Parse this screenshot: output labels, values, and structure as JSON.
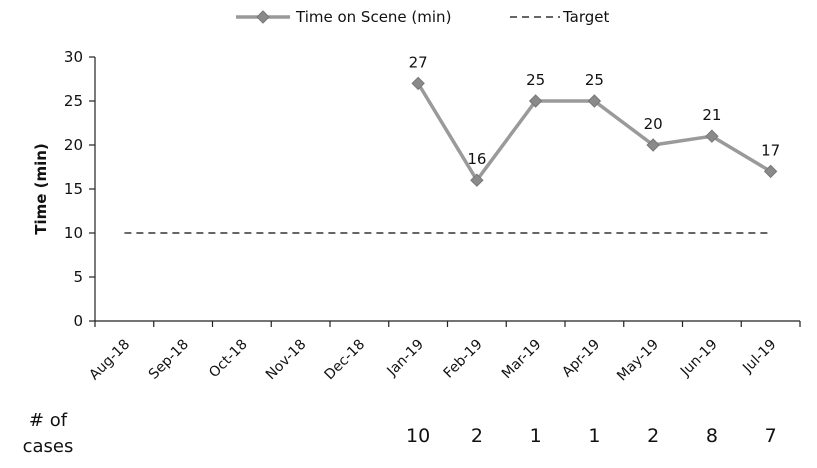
{
  "chart_data": {
    "type": "line",
    "categories": [
      "Aug-18",
      "Sep-18",
      "Oct-18",
      "Nov-18",
      "Dec-18",
      "Jan-19",
      "Feb-19",
      "Mar-19",
      "Apr-19",
      "May-19",
      "Jun-19",
      "Jul-19"
    ],
    "series": [
      {
        "name": "Time on Scene (min)",
        "values": [
          null,
          null,
          null,
          null,
          null,
          27,
          16,
          25,
          25,
          20,
          21,
          17
        ],
        "color": "#9a9a9a",
        "marker": "diamond"
      },
      {
        "name": "Target",
        "values": [
          10,
          10,
          10,
          10,
          10,
          10,
          10,
          10,
          10,
          10,
          10,
          10
        ],
        "color": "#333333",
        "style": "dashed"
      }
    ],
    "data_labels": [
      null,
      null,
      null,
      null,
      null,
      "27",
      "16",
      "25",
      "25",
      "20",
      "21",
      "17"
    ],
    "ylabel": "Time (min)",
    "ylim": [
      0,
      30
    ],
    "yticks": [
      0,
      5,
      10,
      15,
      20,
      25,
      30
    ],
    "legend_position": "top-center",
    "grid": false
  },
  "cases": {
    "label_line1": "# of",
    "label_line2": "cases",
    "values": [
      "",
      "",
      "",
      "",
      "",
      "10",
      "2",
      "1",
      "1",
      "2",
      "8",
      "7"
    ]
  }
}
